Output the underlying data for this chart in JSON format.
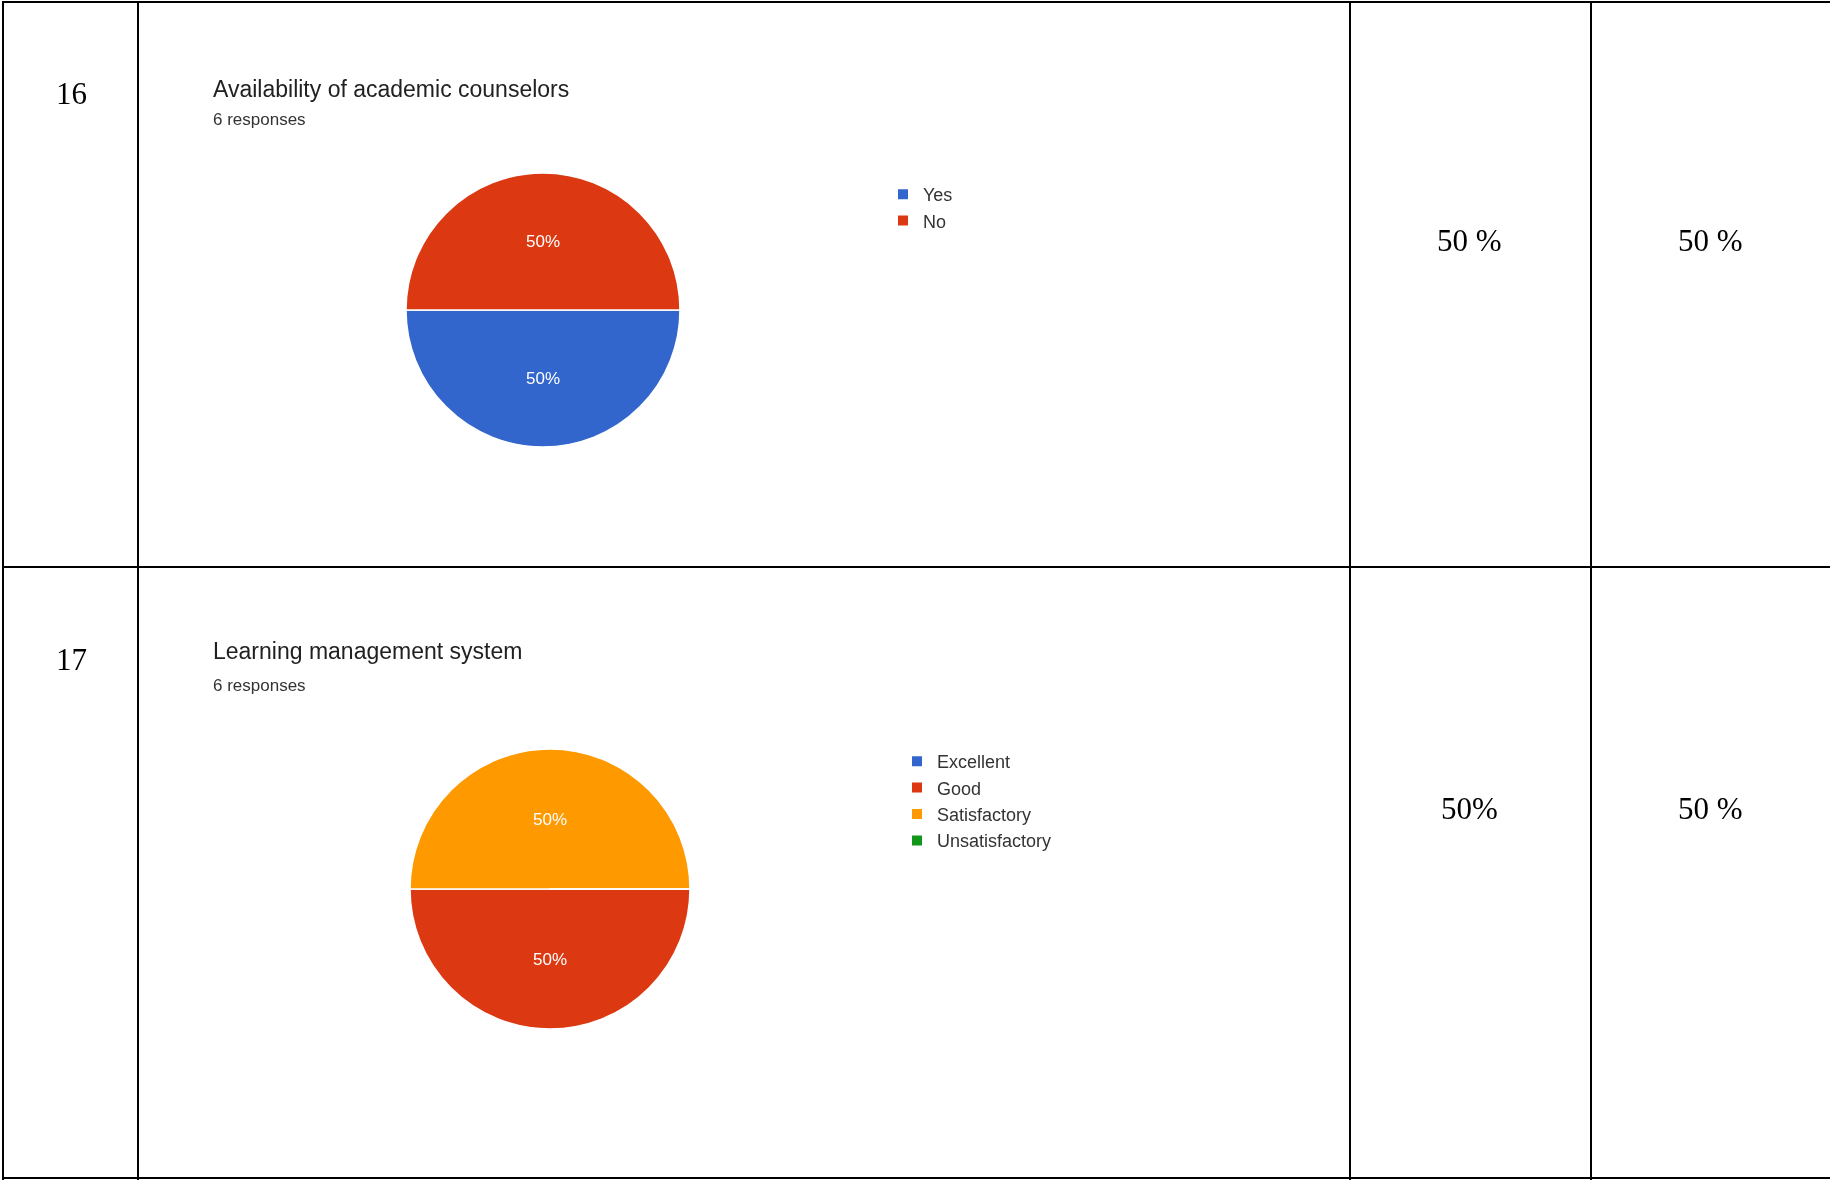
{
  "chart_data": [
    {
      "type": "pie",
      "title": "Availability of academic counselors",
      "subtitle": "6 responses",
      "categories": [
        "Yes",
        "No"
      ],
      "values": [
        50,
        50
      ],
      "colors": [
        "#3366cc",
        "#dc3912"
      ],
      "value_labels": [
        "50%",
        "50%"
      ],
      "legend": "right",
      "annotations": [
        "16",
        "50 %",
        "50 %"
      ]
    },
    {
      "type": "pie",
      "title": "Learning management system",
      "subtitle": "6 responses",
      "categories": [
        "Excellent",
        "Good",
        "Satisfactory",
        "Unsatisfactory"
      ],
      "values": [
        0,
        50,
        50,
        0
      ],
      "colors": [
        "#3366cc",
        "#dc3912",
        "#ff9900",
        "#109618"
      ],
      "value_labels": [
        null,
        "50%",
        "50%",
        null
      ],
      "legend": "right",
      "annotations": [
        "17",
        "50%",
        "50 %"
      ]
    }
  ]
}
